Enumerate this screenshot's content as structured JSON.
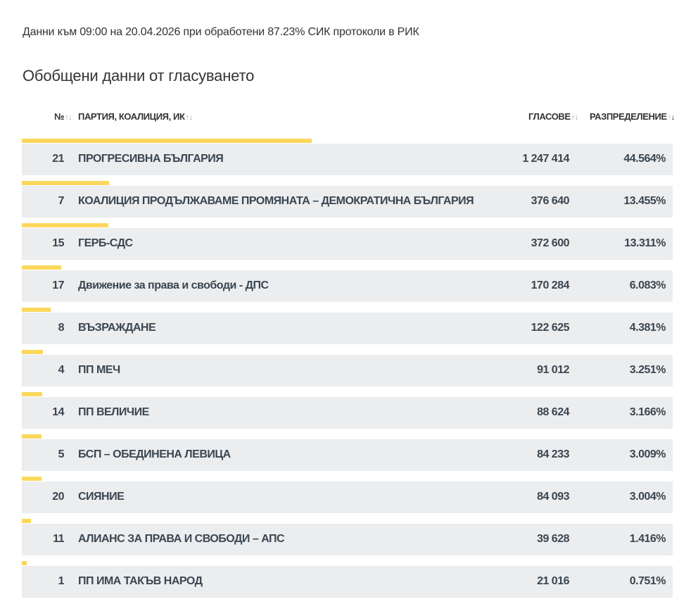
{
  "info": "Данни към 09:00 на 20.04.2026 при обработени 87.23% СИК протоколи в РИК",
  "title": "Обобщени данни от гласуването",
  "header": {
    "num": "№",
    "party": "ПАРТИЯ, КОАЛИЦИЯ, ИК",
    "votes": "ГЛАСОВЕ",
    "distribution": "РАЗПРЕДЕЛЕНИЕ",
    "sort_icon": "sort-arrows-icon",
    "active_sort": "distribution-desc"
  },
  "colors": {
    "bar": "#fbd75b",
    "row_bg": "#ebedef",
    "sort_active_up": "#f5c33b"
  },
  "rows": [
    {
      "num": "21",
      "name": "ПРОГРЕСИВНА БЪЛГАРИЯ",
      "votes": "1 247 414",
      "pct": "44.564%",
      "share": 44.564
    },
    {
      "num": "7",
      "name": "КОАЛИЦИЯ ПРОДЪЛЖАВАМЕ ПРОМЯНАТА – ДЕМОКРАТИЧНА БЪЛГАРИЯ",
      "votes": "376 640",
      "pct": "13.455%",
      "share": 13.455
    },
    {
      "num": "15",
      "name": "ГЕРБ-СДС",
      "votes": "372 600",
      "pct": "13.311%",
      "share": 13.311
    },
    {
      "num": "17",
      "name": "Движение за права и свободи - ДПС",
      "votes": "170 284",
      "pct": "6.083%",
      "share": 6.083
    },
    {
      "num": "8",
      "name": "ВЪЗРАЖДАНЕ",
      "votes": "122 625",
      "pct": "4.381%",
      "share": 4.381
    },
    {
      "num": "4",
      "name": "ПП МЕЧ",
      "votes": "91 012",
      "pct": "3.251%",
      "share": 3.251
    },
    {
      "num": "14",
      "name": "ПП ВЕЛИЧИЕ",
      "votes": "88 624",
      "pct": "3.166%",
      "share": 3.166
    },
    {
      "num": "5",
      "name": "БСП – ОБЕДИНЕНА ЛЕВИЦА",
      "votes": "84 233",
      "pct": "3.009%",
      "share": 3.009
    },
    {
      "num": "20",
      "name": "СИЯНИЕ",
      "votes": "84 093",
      "pct": "3.004%",
      "share": 3.004
    },
    {
      "num": "11",
      "name": "АЛИАНС ЗА ПРАВА И СВОБОДИ – АПС",
      "votes": "39 628",
      "pct": "1.416%",
      "share": 1.416
    },
    {
      "num": "1",
      "name": "ПП ИМА ТАКЪВ НАРОД",
      "votes": "21 016",
      "pct": "0.751%",
      "share": 0.751
    }
  ]
}
